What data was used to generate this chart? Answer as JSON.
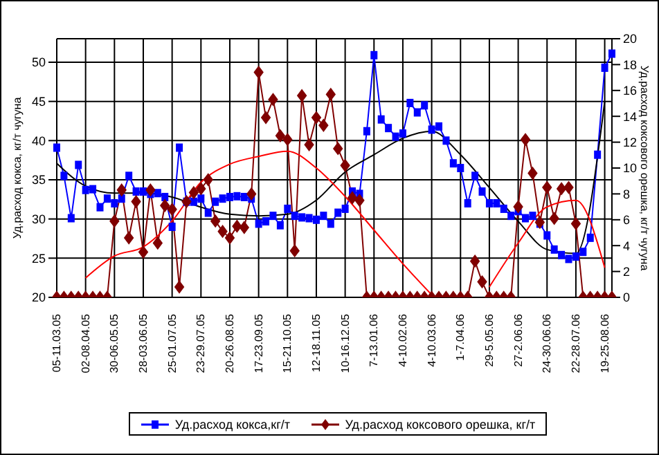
{
  "chart_data": {
    "type": "line",
    "ylabel": "Уд.расход кокса, кг/т чугуна",
    "y2label": "Уд.расход коксового орешка, кг/т чугуна",
    "categories": [
      "05-11.03.05",
      null,
      null,
      null,
      "02-08.04.05",
      null,
      null,
      null,
      "30-06.05.05",
      null,
      null,
      null,
      "28-03.06.05",
      null,
      null,
      null,
      "25-01.07.05",
      null,
      null,
      null,
      "23-29.07.05",
      null,
      null,
      null,
      "20-26.08.05",
      null,
      null,
      null,
      "17-23.09.05",
      null,
      null,
      null,
      "15-21.10.05",
      null,
      null,
      null,
      "12-18.11.05",
      null,
      null,
      null,
      "10-16.12.05",
      null,
      null,
      null,
      "7-13.01.06",
      null,
      null,
      null,
      "4-10.02.06",
      null,
      null,
      null,
      "4-10.03.06",
      null,
      null,
      null,
      "1-7.04.06",
      null,
      null,
      null,
      "29-5.05.06",
      null,
      null,
      null,
      "27-2.06.06",
      null,
      null,
      null,
      "24-30.06.06",
      null,
      null,
      null,
      "22-28.07.06",
      null,
      null,
      null,
      "19-25.08.06",
      null
    ],
    "ylim": [
      20,
      53
    ],
    "yticks": [
      20,
      25,
      30,
      35,
      40,
      45,
      50
    ],
    "y2lim": [
      0,
      20
    ],
    "y2ticks": [
      0,
      2,
      4,
      6,
      8,
      10,
      12,
      14,
      16,
      18,
      20
    ],
    "grid": true,
    "legend": "bottom",
    "series": [
      {
        "name": "Уд.расход кокса,кг/т",
        "color": "#0000ff",
        "marker": "square",
        "values": [
          39.1,
          35.5,
          30.1,
          36.9,
          33.7,
          33.8,
          31.5,
          32.6,
          32.0,
          32.6,
          35.5,
          33.5,
          33.5,
          33.2,
          33.3,
          32.8,
          29.0,
          39.1,
          32.2,
          32.2,
          32.6,
          30.8,
          32.2,
          32.6,
          32.8,
          32.9,
          32.8,
          32.6,
          29.4,
          29.7,
          30.4,
          29.2,
          31.3,
          30.4,
          30.2,
          30.1,
          29.9,
          30.4,
          29.4,
          30.8,
          31.3,
          33.5,
          33.2,
          41.2,
          50.9,
          42.7,
          41.6,
          40.5,
          40.9,
          44.8,
          43.6,
          44.5,
          41.4,
          41.8,
          40.0,
          37.1,
          36.5,
          32.0,
          35.5,
          33.5,
          32.0,
          32.0,
          31.3,
          30.4,
          31.0,
          30.1,
          30.4,
          29.4,
          27.9,
          26.1,
          25.4,
          24.9,
          25.2,
          25.8,
          27.6,
          38.2,
          49.3,
          51.1
        ]
      },
      {
        "name": "Уд.расход коксового орешка, кг/т",
        "color": "#800000",
        "marker": "diamond",
        "axis": "y2",
        "values": [
          0,
          0,
          0,
          0,
          0,
          0,
          0,
          0,
          5.9,
          8.3,
          4.6,
          7.4,
          3.5,
          8.3,
          4.2,
          7.1,
          6.8,
          0.8,
          7.4,
          8.1,
          8.4,
          9.1,
          5.9,
          5.1,
          4.6,
          5.5,
          5.4,
          8.0,
          17.4,
          13.9,
          15.3,
          12.5,
          12.2,
          3.6,
          15.6,
          11.8,
          13.9,
          13.3,
          15.7,
          11.5,
          10.2,
          7.7,
          7.5,
          0,
          0,
          0,
          0,
          0,
          0,
          0,
          0,
          0,
          0,
          0,
          0,
          0,
          0,
          0,
          2.8,
          1.2,
          0,
          0,
          0,
          0,
          7.0,
          12.2,
          9.6,
          5.8,
          8.5,
          6.1,
          8.4,
          8.5,
          5.7,
          0,
          0,
          0,
          0,
          0
        ]
      },
      {
        "type": "line",
        "color": "#000000",
        "marker": "none",
        "x": [
          "05-11.03.05",
          "02-08.04.05",
          "30-06.05.05",
          "28-03.06.05",
          "25-01.07.05",
          "23-29.07.05",
          "20-26.08.05",
          "17-23.09.05",
          "15-21.10.05",
          "12-18.11.05",
          "10-16.12.05",
          "7-13.01.06",
          "4-10.02.06",
          "4-10.03.06",
          "1-7.04.06",
          "29-5.05.06",
          "27-2.06.06",
          "24-30.06.06",
          "22-28.07.06",
          "19-25.08.06"
        ],
        "values": [
          37.1,
          34.2,
          33.3,
          33.3,
          32.8,
          31.5,
          30.6,
          30.4,
          30.6,
          32.4,
          36.0,
          38.2,
          40.3,
          41.2,
          38.2,
          34.0,
          29.7,
          26.1,
          25.6,
          45.0
        ]
      },
      {
        "type": "line",
        "color": "#ff0000",
        "marker": "none",
        "axis": "y2",
        "x": [
          "02-08.04.05",
          "30-06.05.05",
          "28-03.06.05",
          "25-01.07.05",
          "23-29.07.05",
          "20-26.08.05",
          "17-23.09.05",
          "15-21.10.05",
          "12-18.11.05",
          "10-16.12.05",
          "7-13.01.06",
          "4-10.02.06",
          "4-10.03.06"
        ],
        "values": [
          1.5,
          3.2,
          3.9,
          5.9,
          8.9,
          10.3,
          10.9,
          11.3,
          10.0,
          7.8,
          5.2,
          2.6,
          0.2
        ]
      },
      {
        "type": "line",
        "color": "#ff0000",
        "marker": "none",
        "axis": "y2",
        "x": [
          "29-5.05.06",
          "27-2.06.06",
          "24-30.06.06",
          "22-28.07.06",
          "19-25.08.06"
        ],
        "values": [
          0.8,
          4.2,
          7.0,
          7.5,
          2.3
        ]
      }
    ]
  }
}
